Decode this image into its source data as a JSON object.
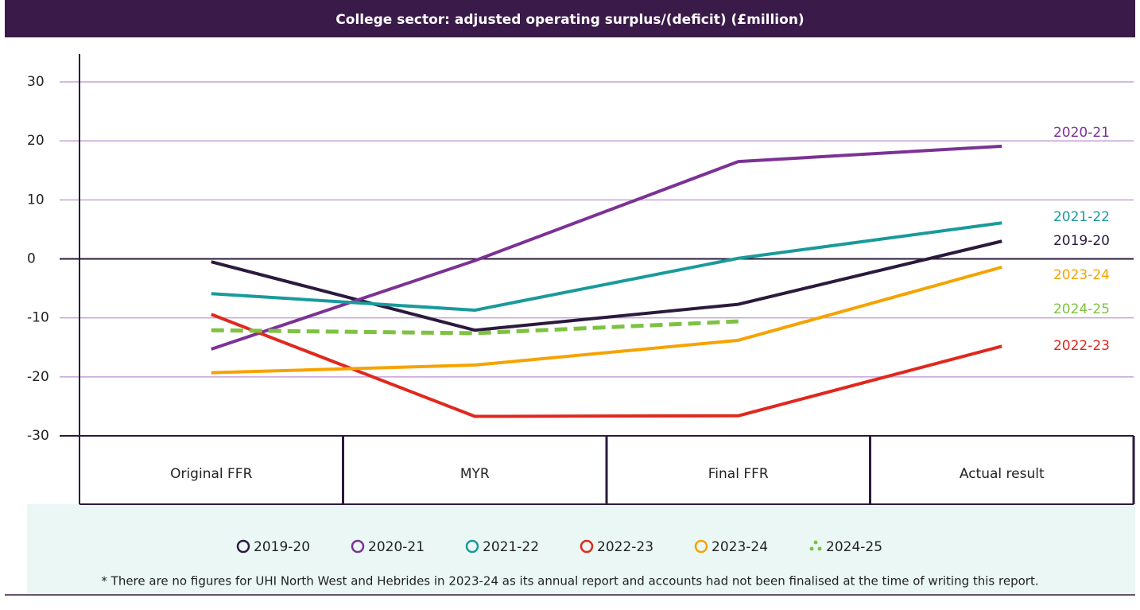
{
  "chart_data": {
    "type": "line",
    "title": "College sector: adjusted operating surplus/(deficit) (£million)",
    "categories": [
      "Original FFR",
      "MYR",
      "Final FFR",
      "Actual result"
    ],
    "series": [
      {
        "name": "2019-20",
        "color": "#2b1a3d",
        "style": "solid",
        "values": [
          -0.5,
          -12.1,
          -7.7,
          3.0
        ]
      },
      {
        "name": "2020-21",
        "color": "#7b3294",
        "style": "solid",
        "values": [
          -15.3,
          -0.3,
          16.5,
          19.1
        ]
      },
      {
        "name": "2021-22",
        "color": "#1a9a9a",
        "style": "solid",
        "values": [
          -5.9,
          -8.7,
          0.1,
          6.1
        ]
      },
      {
        "name": "2022-23",
        "color": "#e0281e",
        "style": "solid",
        "values": [
          -9.4,
          -26.7,
          -26.6,
          -14.8
        ]
      },
      {
        "name": "2023-24",
        "color": "#f5a300",
        "style": "solid",
        "values": [
          -19.3,
          -18.0,
          -13.8,
          -1.4
        ]
      },
      {
        "name": "2024-25",
        "color": "#7dc242",
        "style": "dashed",
        "values": [
          -12.1,
          -12.6,
          -10.6,
          null
        ]
      }
    ],
    "ylim": [
      -30,
      30
    ],
    "yticks": [
      -30,
      -20,
      -10,
      0,
      10,
      20,
      30
    ],
    "grid": true,
    "footnote": "* There are no figures for UHI North West and Hebrides in 2023-24 as its annual report and accounts had not been finalised at the time of writing this report."
  }
}
